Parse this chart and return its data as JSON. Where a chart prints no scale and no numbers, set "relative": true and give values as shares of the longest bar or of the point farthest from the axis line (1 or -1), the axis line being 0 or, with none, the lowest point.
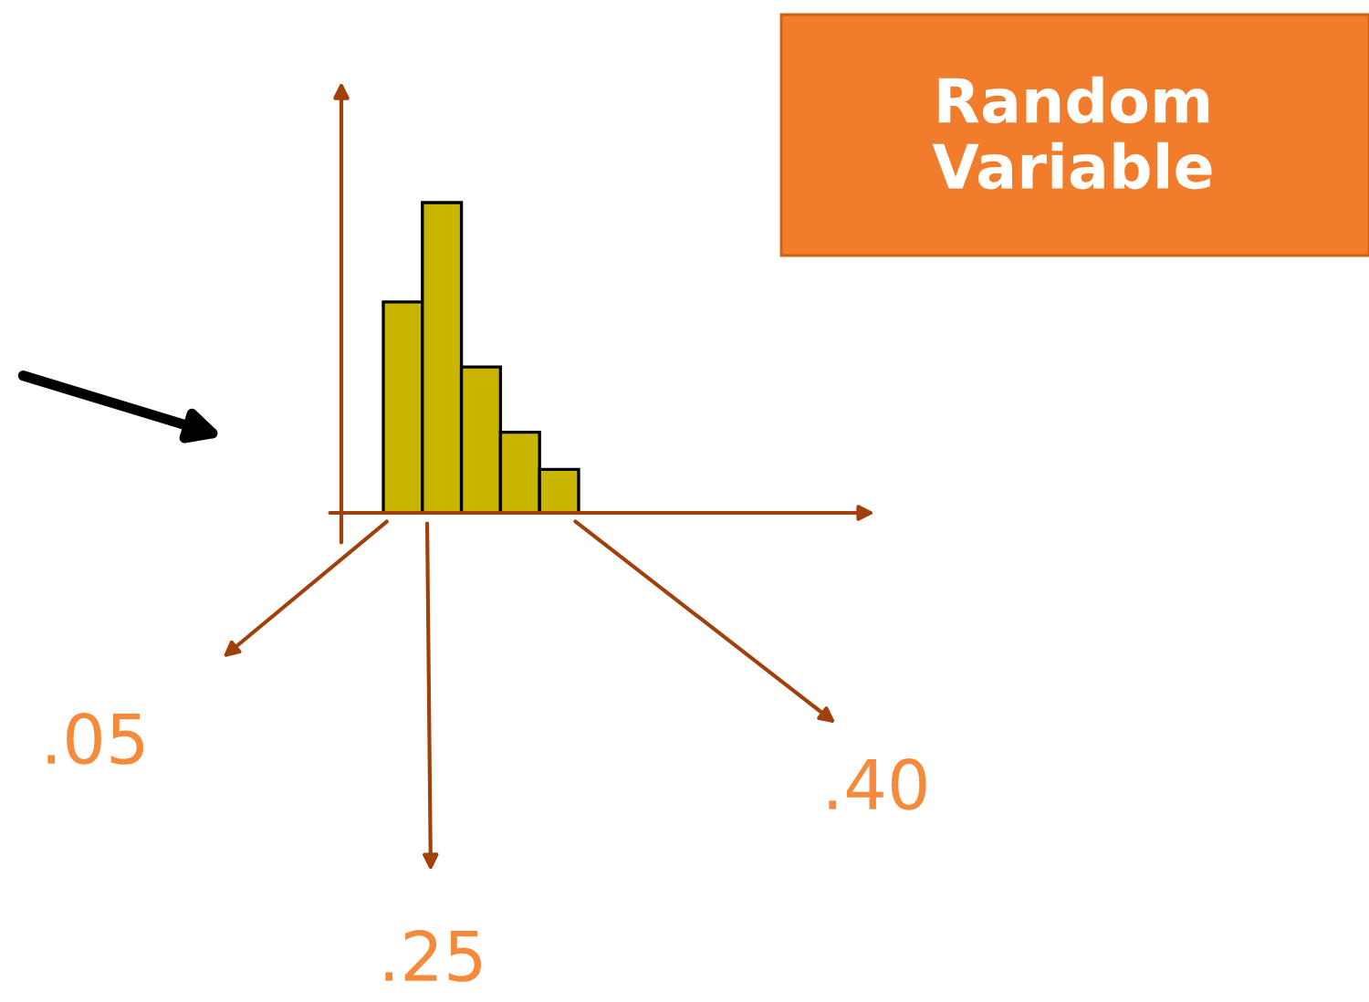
{
  "chart_data": {
    "type": "bar",
    "relative": true,
    "title": "Random Variable",
    "categories": [
      null,
      null,
      null,
      null,
      null
    ],
    "values": [
      0.68,
      1,
      0.47,
      0.26,
      0.14
    ],
    "color": "#c9b400",
    "annotations": [
      ".05",
      ".25",
      ".40"
    ]
  }
}
